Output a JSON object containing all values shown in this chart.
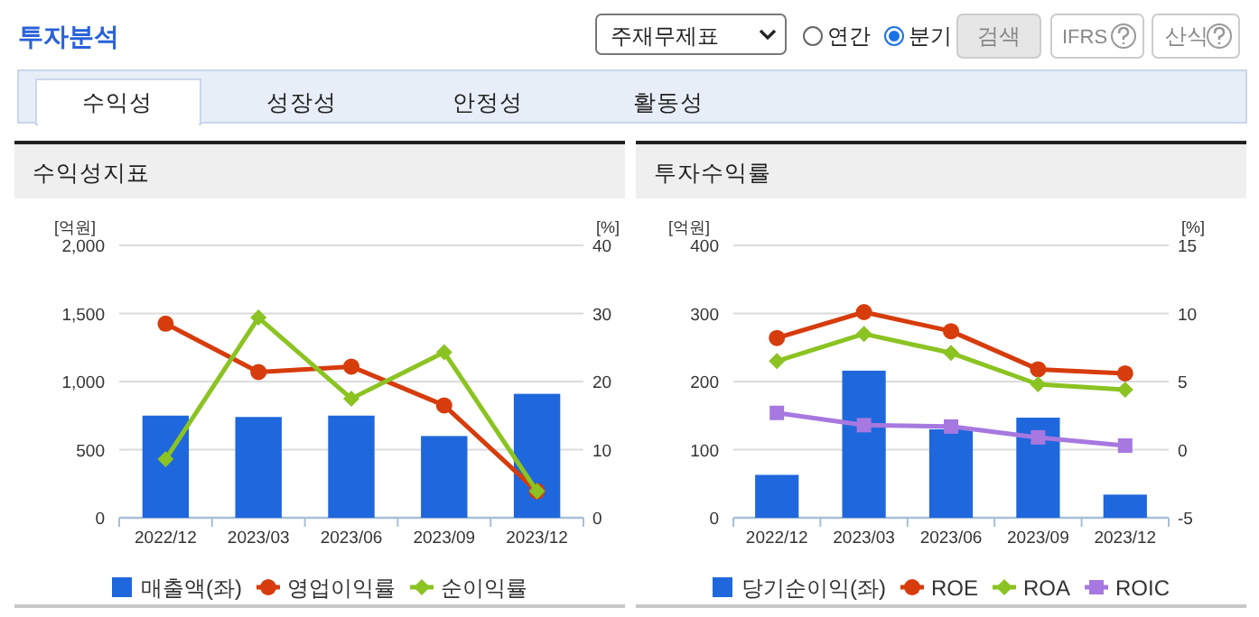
{
  "chart_data": [
    {
      "type": "other",
      "title": "투자분석",
      "annotations": [
        "주재무제표",
        "연간",
        "분기",
        "검색",
        "IFRS",
        "산식",
        "수익성",
        "성장성",
        "안정성",
        "활동성"
      ]
    },
    {
      "type": "bar",
      "title": "수익성지표",
      "ylabel": "[억원]",
      "y2label": "[%]",
      "categories": [
        "2022/12",
        "2023/03",
        "2023/06",
        "2023/09",
        "2023/12"
      ],
      "series": [
        {
          "name": "매출액(좌)",
          "color": "#1f67dc",
          "values": [
            750,
            740,
            750,
            600,
            910
          ]
        },
        {
          "name": "영업이익률",
          "type": "line",
          "axis": "y2",
          "marker": "circle",
          "color": "#d63c0c",
          "values": [
            28.5,
            21.4,
            22.2,
            16.5,
            3.9
          ]
        },
        {
          "name": "순이익률",
          "type": "line",
          "axis": "y2",
          "marker": "diamond",
          "color": "#8bc322",
          "values": [
            8.6,
            29.4,
            17.5,
            24.3,
            3.9
          ]
        }
      ],
      "ylim": [
        0,
        2000
      ],
      "yticks": [
        0,
        500,
        {
          "value": 1000,
          "label": "1,000"
        },
        {
          "value": 1500,
          "label": "1,500"
        },
        {
          "value": 2000,
          "label": "2,000"
        }
      ],
      "y2lim": [
        0,
        40
      ],
      "y2ticks": [
        0,
        10,
        20,
        30,
        40
      ],
      "grid": "y",
      "legend": "bottom"
    },
    {
      "type": "bar",
      "title": "투자수익률",
      "ylabel": "[억원]",
      "y2label": "[%]",
      "categories": [
        "2022/12",
        "2023/03",
        "2023/06",
        "2023/09",
        "2023/12"
      ],
      "series": [
        {
          "name": "당기순이익(좌)",
          "color": "#1f67dc",
          "values": [
            63,
            216,
            130,
            147,
            34
          ]
        },
        {
          "name": "ROE",
          "type": "line",
          "axis": "y2",
          "marker": "circle",
          "color": "#d63c0c",
          "values": [
            8.2,
            10.1,
            8.7,
            5.9,
            5.6
          ]
        },
        {
          "name": "ROA",
          "type": "line",
          "axis": "y2",
          "marker": "diamond",
          "color": "#8bc322",
          "values": [
            6.5,
            8.5,
            7.1,
            4.8,
            4.4
          ]
        },
        {
          "name": "ROIC",
          "type": "line",
          "axis": "y2",
          "marker": "square",
          "color": "#a678e0",
          "values": [
            2.7,
            1.8,
            1.7,
            0.9,
            0.3
          ]
        }
      ],
      "ylim": [
        0,
        400
      ],
      "yticks": [
        0,
        100,
        200,
        300,
        400
      ],
      "y2lim": [
        -5,
        15
      ],
      "y2ticks": [
        -5,
        0,
        5,
        10,
        15
      ],
      "grid": "y",
      "legend": "bottom"
    }
  ]
}
